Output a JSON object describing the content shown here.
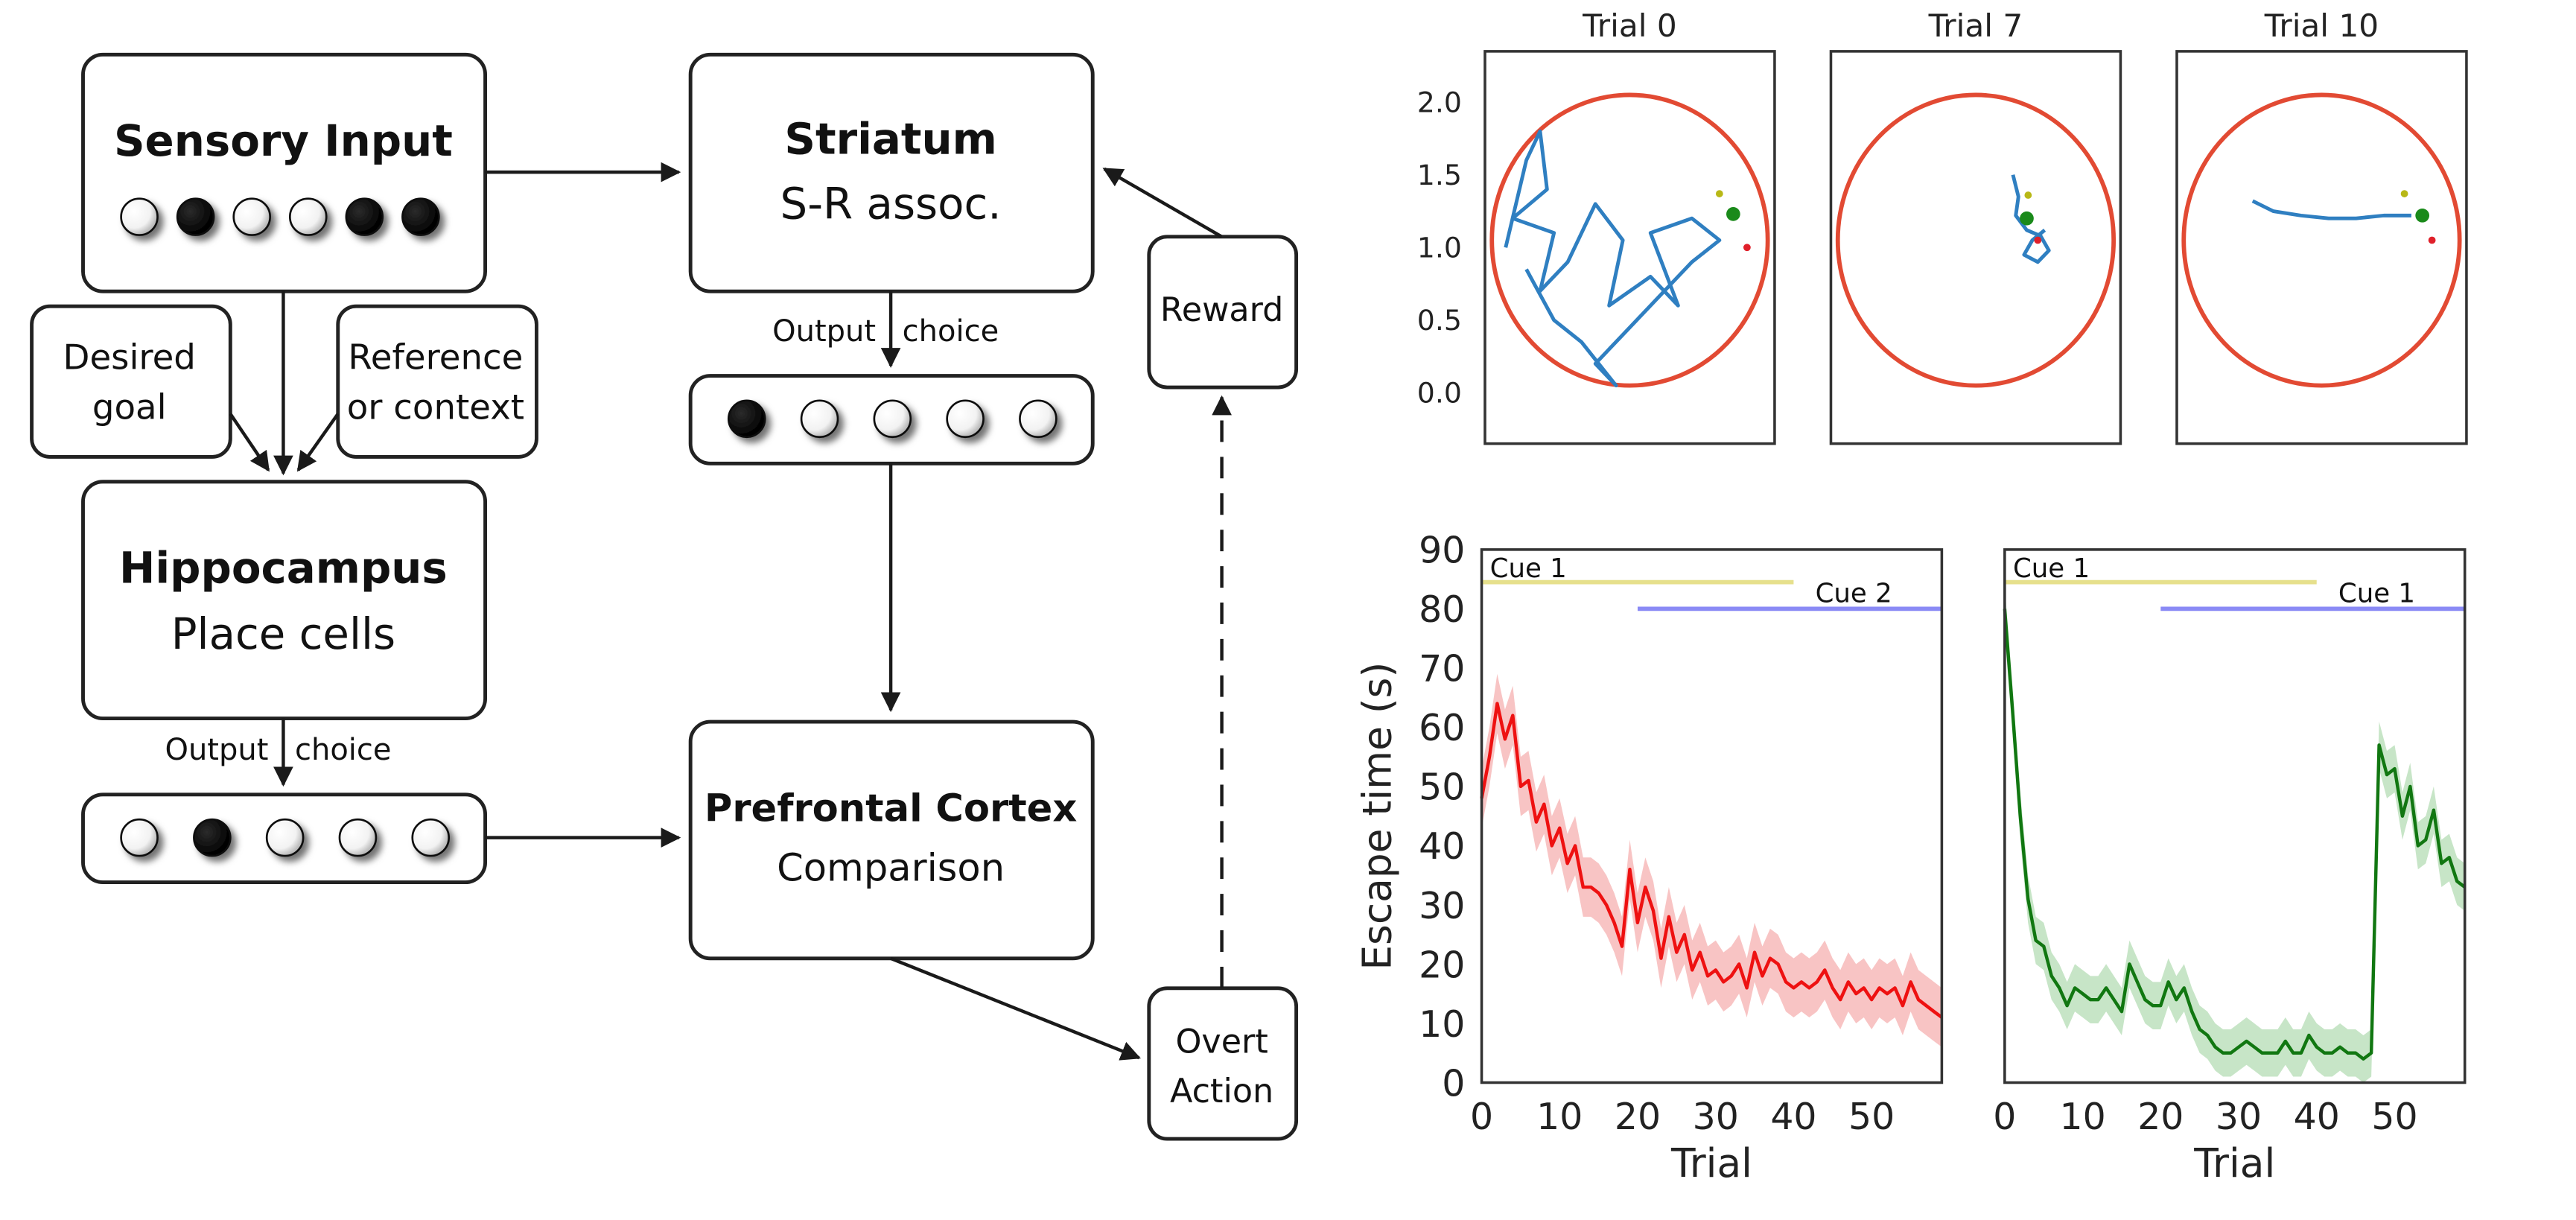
{
  "diagram": {
    "sensory_input": {
      "title": "Sensory Input",
      "units": [
        0,
        1,
        0,
        0,
        1,
        1
      ]
    },
    "striatum": {
      "title": "Striatum",
      "subtitle": "S-R assoc."
    },
    "desired_goal": "Desired goal",
    "desired_goal_lines": [
      "Desired",
      "goal"
    ],
    "reference": "Reference or context",
    "reference_lines": [
      "Reference",
      "or context"
    ],
    "hippocampus": {
      "title": "Hippocampus",
      "subtitle": "Place cells"
    },
    "hippo_output": {
      "left": "Output",
      "right": "choice",
      "units": [
        0,
        1,
        0,
        0,
        0
      ]
    },
    "striatum_output": {
      "left": "Output",
      "right": "choice",
      "units": [
        1,
        0,
        0,
        0,
        0
      ]
    },
    "pfc": {
      "title": "Prefrontal Cortex",
      "subtitle": "Comparison"
    },
    "reward": "Reward",
    "overt_action": "Overt Action",
    "overt_action_lines": [
      "Overt",
      "Action"
    ]
  },
  "colors": {
    "arena": "#e24a33",
    "trajectory": "#2f7fc1",
    "platform": "#1a8a1a",
    "cue_yellow": "#b8b816",
    "cue_red": "#e0202a",
    "series_red": "#ee1111",
    "series_green": "#117711",
    "bar_yellow": "#e6e08c",
    "bar_blue": "#8a8af5"
  },
  "chart_data": [
    {
      "type": "scatter",
      "title": "Trial 0",
      "ylim": [
        -0.35,
        2.35
      ],
      "yticks": [
        "0.0",
        "0.5",
        "1.0",
        "1.5",
        "2.0"
      ],
      "xlim": [
        0,
        2.1
      ],
      "arena": {
        "center": [
          1.05,
          1.05
        ],
        "radius": 1.0
      },
      "trajectory": [
        [
          0.15,
          1.0
        ],
        [
          0.3,
          1.6
        ],
        [
          0.4,
          1.8
        ],
        [
          0.45,
          1.4
        ],
        [
          0.2,
          1.2
        ],
        [
          0.5,
          1.1
        ],
        [
          0.4,
          0.7
        ],
        [
          0.6,
          0.9
        ],
        [
          0.8,
          1.3
        ],
        [
          1.0,
          1.05
        ],
        [
          0.9,
          0.6
        ],
        [
          1.2,
          0.8
        ],
        [
          1.4,
          0.6
        ],
        [
          1.2,
          1.1
        ],
        [
          1.5,
          1.2
        ],
        [
          1.7,
          1.05
        ],
        [
          1.5,
          0.9
        ],
        [
          1.0,
          0.4
        ],
        [
          0.8,
          0.2
        ],
        [
          0.95,
          0.05
        ],
        [
          0.7,
          0.35
        ],
        [
          0.5,
          0.5
        ],
        [
          0.3,
          0.85
        ]
      ],
      "cues": [
        [
          1.7,
          1.37
        ],
        [
          1.8,
          1.23
        ],
        [
          1.9,
          1.0
        ]
      ]
    },
    {
      "type": "scatter",
      "title": "Trial 7",
      "ylim": [
        -0.35,
        2.35
      ],
      "xlim": [
        0,
        2.1
      ],
      "arena": {
        "center": [
          1.05,
          1.05
        ],
        "radius": 1.0
      },
      "trajectory": [
        [
          1.32,
          1.5
        ],
        [
          1.36,
          1.35
        ],
        [
          1.34,
          1.22
        ],
        [
          1.42,
          1.12
        ],
        [
          1.52,
          1.08
        ],
        [
          1.58,
          0.98
        ],
        [
          1.5,
          0.9
        ],
        [
          1.4,
          0.95
        ],
        [
          1.46,
          1.05
        ],
        [
          1.55,
          1.12
        ]
      ],
      "cues": [
        [
          1.43,
          1.36
        ],
        [
          1.42,
          1.2
        ],
        [
          1.5,
          1.05
        ]
      ]
    },
    {
      "type": "scatter",
      "title": "Trial 10",
      "ylim": [
        -0.35,
        2.35
      ],
      "xlim": [
        0,
        2.1
      ],
      "arena": {
        "center": [
          1.05,
          1.05
        ],
        "radius": 1.0
      },
      "trajectory": [
        [
          0.55,
          1.32
        ],
        [
          0.7,
          1.25
        ],
        [
          0.9,
          1.22
        ],
        [
          1.1,
          1.2
        ],
        [
          1.3,
          1.2
        ],
        [
          1.5,
          1.22
        ],
        [
          1.7,
          1.22
        ]
      ],
      "cues": [
        [
          1.65,
          1.37
        ],
        [
          1.78,
          1.22
        ],
        [
          1.85,
          1.05
        ]
      ]
    },
    {
      "type": "line",
      "xlabel": "Trial",
      "ylabel": "Escape time (s)",
      "xlim": [
        0,
        59
      ],
      "ylim": [
        0,
        90
      ],
      "xticks": [
        "0",
        "10",
        "20",
        "30",
        "40",
        "50"
      ],
      "yticks": [
        "0",
        "10",
        "20",
        "30",
        "40",
        "50",
        "60",
        "70",
        "80",
        "90"
      ],
      "bars": [
        {
          "label": "Cue 1",
          "x": [
            0,
            40
          ],
          "y": 84.5
        },
        {
          "label": "Cue 2",
          "x": [
            20,
            59
          ],
          "y": 80
        }
      ],
      "series": [
        {
          "values": [
            48,
            55,
            64,
            58,
            62,
            50,
            51,
            44,
            47,
            40,
            43,
            37,
            40,
            33,
            33,
            32,
            30,
            27,
            23,
            36,
            27,
            33,
            29,
            21,
            28,
            22,
            25,
            19,
            22,
            18,
            19,
            17,
            18,
            20,
            16,
            22,
            18,
            21,
            20,
            17,
            16,
            17,
            16,
            17,
            19,
            16,
            14,
            17,
            15,
            16,
            14,
            16,
            15,
            16,
            13,
            17,
            14,
            13,
            12,
            11
          ],
          "band": 5
        }
      ]
    },
    {
      "type": "line",
      "xlabel": "Trial",
      "xlim": [
        0,
        59
      ],
      "ylim": [
        0,
        90
      ],
      "xticks": [
        "0",
        "10",
        "20",
        "30",
        "40",
        "50"
      ],
      "bars": [
        {
          "label": "Cue 1",
          "x": [
            0,
            40
          ],
          "y": 84.5
        },
        {
          "label": "Cue 1",
          "x": [
            20,
            59
          ],
          "y": 80
        }
      ],
      "series": [
        {
          "values": [
            80,
            63,
            45,
            31,
            24,
            23,
            18,
            16,
            13,
            16,
            15,
            14,
            14,
            16,
            14,
            12,
            20,
            17,
            14,
            13,
            13,
            17,
            14,
            16,
            12,
            9,
            8,
            6,
            5,
            5,
            6,
            7,
            6,
            5,
            5,
            5,
            7,
            5,
            5,
            8,
            6,
            5,
            5,
            6,
            5,
            5,
            4,
            5,
            57,
            52,
            53,
            45,
            50,
            40,
            41,
            46,
            37,
            38,
            34,
            33
          ],
          "band": 4
        }
      ]
    }
  ]
}
